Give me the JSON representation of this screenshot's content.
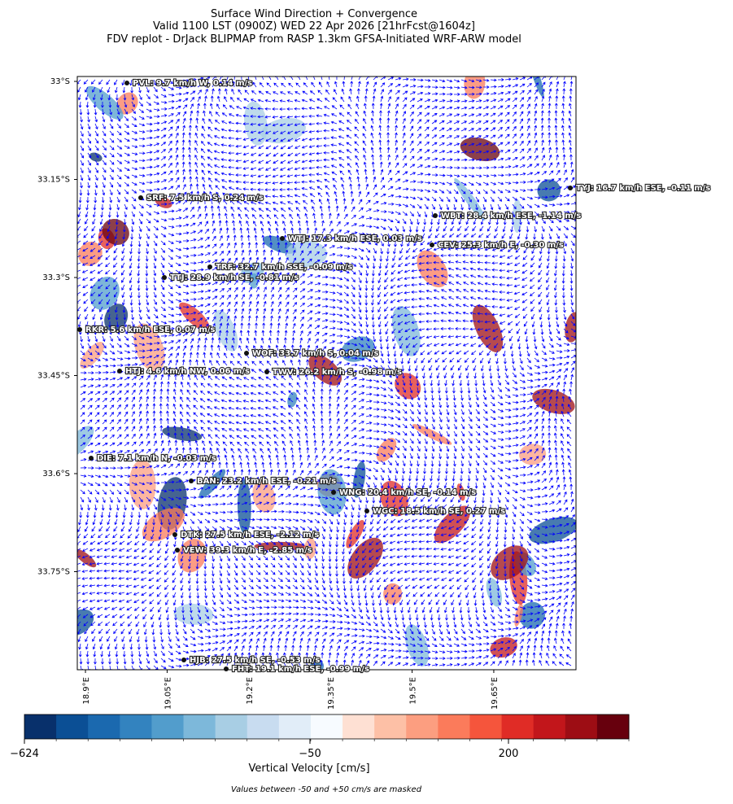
{
  "chart_data": {
    "type": "map",
    "title": [
      "Surface Wind Direction + Convergence",
      "Valid 1100 LST (0900Z) WED 22 Apr 2026 [21hrFcst@1604z]",
      "FDV replot - DrJack BLIPMAP from RASP 1.3km GFSA-Initiated WRF-ARW model"
    ],
    "xlim": [
      18.885,
      19.801
    ],
    "ylim": [
      -33.9,
      -32.9925
    ],
    "xticks": [
      {
        "value": 18.9,
        "label": "18.9°E"
      },
      {
        "value": 19.05,
        "label": "19.05°E"
      },
      {
        "value": 19.2,
        "label": "19.2°E"
      },
      {
        "value": 19.35,
        "label": "19.35°E"
      },
      {
        "value": 19.5,
        "label": "19.5°E"
      },
      {
        "value": 19.65,
        "label": "19.65°E"
      }
    ],
    "yticks": [
      {
        "value": -33,
        "label": "33°S"
      },
      {
        "value": -33.15,
        "label": "33.15°S"
      },
      {
        "value": -33.3,
        "label": "33.3°S"
      },
      {
        "value": -33.45,
        "label": "33.45°S"
      },
      {
        "value": -33.6,
        "label": "33.6°S"
      },
      {
        "value": -33.75,
        "label": "33.75°S"
      }
    ],
    "stations": [
      "PVL: 9.7 km/h W, 0.14 m/s",
      "TYJ: 16.7 km/h ESE, -0.11 m/s",
      "SRF: 7.5 km/h S, 0.24 m/s",
      "WBT: 28.4 km/h ESE, -1.14 m/s",
      "WTJ: 17.3 km/h ESE, 0.03 m/s",
      "CEV: 25.3 km/h E, -0.30 m/s",
      "TRF: 32.7 km/h SSE, -0.09 m/s",
      "TTJ: 28.9 km/h SE, -0.81 m/s",
      "RKR: 5.6 km/h ESE, 0.07 m/s",
      "WOF: 33.7 km/h S, 0.04 m/s",
      "HTJ: 4.6 km/h NW, 0.06 m/s",
      "TWV: 26.2 km/h S, -0.98 m/s",
      "DIE: 7.1 km/h N, -0.03 m/s",
      "BAN: 23.2 km/h ESE, -0.21 m/s",
      "WNG: 20.4 km/h SE, -0.14 m/s",
      "WGC: 18.5 km/h SE, 0.27 m/s",
      "DTK: 27.5 km/h ESE, -2.12 m/s",
      "VEW: 39.3 km/h E, -2.85 m/s",
      "HJB: 27.5 km/h SE, -0.53 m/s",
      "FHT: 19.1 km/h ESE, -0.99 m/s"
    ],
    "colorbar": {
      "label": "Vertical Velocity [cm/s]",
      "ticks": [
        {
          "value": -624,
          "label": "−624"
        },
        {
          "value": -50,
          "label": "−50"
        },
        200
      ],
      "colors": [
        "#08306b",
        "#0b4f95",
        "#1b69af",
        "#3383bf",
        "#529dcc",
        "#7db8da",
        "#a8cee4",
        "#c8dcf0",
        "#e1edf8",
        "#f7fbff",
        "#fee0d3",
        "#fdc0a6",
        "#fc9e80",
        "#fb7b5b",
        "#f5553c",
        "#e02c26",
        "#c2161b",
        "#9d0d14",
        "#67000d"
      ],
      "note": "Values between -50 and +50 cm/s are masked"
    },
    "vector_color": "#0000ff"
  }
}
